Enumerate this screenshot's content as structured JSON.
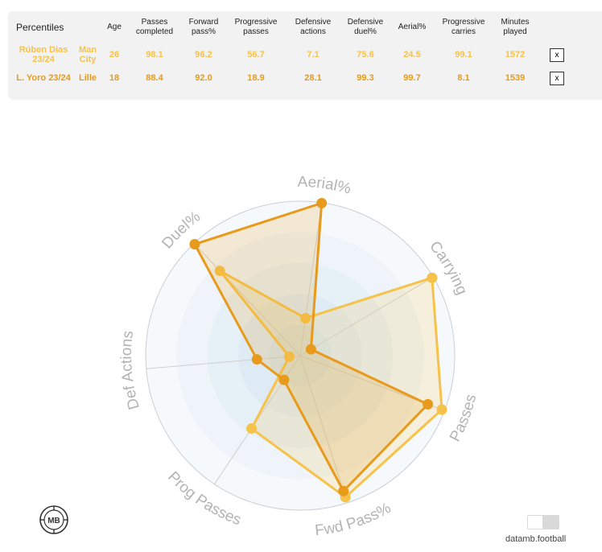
{
  "table": {
    "corner": "Percentiles",
    "headers": [
      "Age",
      "Passes completed",
      "Forward pass%",
      "Progressive passes",
      "Defensive actions",
      "Defensive duel%",
      "Aerial%",
      "Progressive carries",
      "Minutes played"
    ],
    "remove_label": "x",
    "rows": [
      {
        "player": "Rúben Dias 23/24",
        "team": "Man City",
        "values": [
          "26",
          "98.1",
          "96.2",
          "56.7",
          "7.1",
          "75.6",
          "24.5",
          "99.1",
          "1572"
        ],
        "color": "#f6c24a"
      },
      {
        "player": "L. Yoro 23/24",
        "team": "Lille",
        "values": [
          "18",
          "88.4",
          "92.0",
          "18.9",
          "28.1",
          "99.3",
          "99.7",
          "8.1",
          "1539"
        ],
        "color": "#e79a1c"
      }
    ]
  },
  "chart_data": {
    "type": "radar",
    "axes": [
      "Aerial%",
      "Carrying",
      "Passes",
      "Fwd Pass%",
      "Prog Passes",
      "Def Actions",
      "Duel%"
    ],
    "rmax": 100,
    "series": [
      {
        "name": "Rúben Dias 23/24",
        "color": "#f6c24a",
        "values": [
          24.5,
          99.1,
          98.1,
          96.2,
          56.7,
          7.1,
          75.6
        ]
      },
      {
        "name": "L. Yoro 23/24",
        "color": "#e79a1c",
        "values": [
          99.7,
          8.1,
          88.4,
          92.0,
          18.9,
          28.1,
          99.3
        ]
      }
    ]
  },
  "footer": {
    "logo_text": "MB",
    "brand": "datamb.football"
  }
}
